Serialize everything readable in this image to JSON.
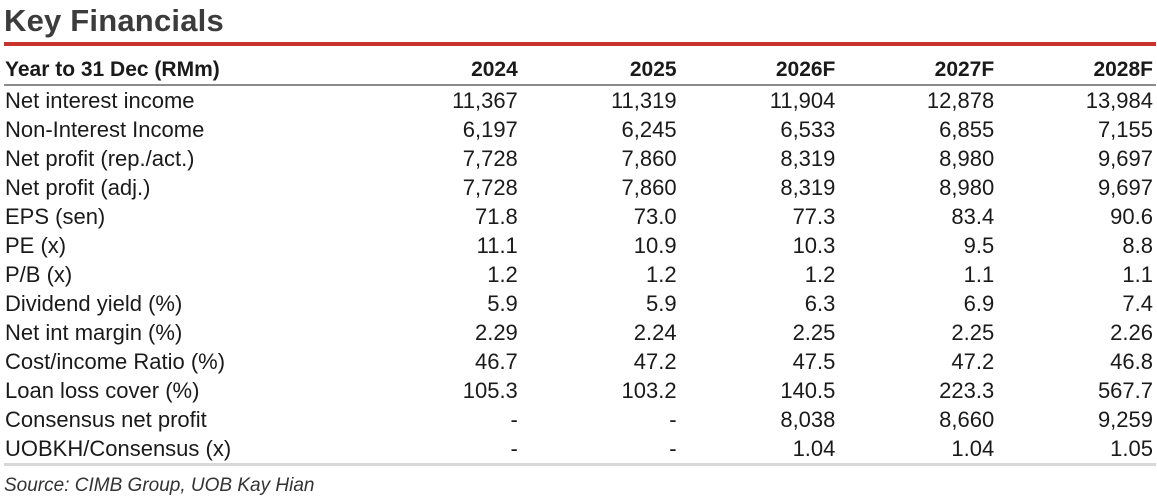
{
  "title": "Key Financials",
  "accent_color": "#c8342b",
  "table": {
    "header": [
      "Year to 31 Dec (RMm)",
      "2024",
      "2025",
      "2026F",
      "2027F",
      "2028F"
    ],
    "rows": [
      {
        "label": "Net interest income",
        "values": [
          "11,367",
          "11,319",
          "11,904",
          "12,878",
          "13,984"
        ]
      },
      {
        "label": "Non-Interest Income",
        "values": [
          "6,197",
          "6,245",
          "6,533",
          "6,855",
          "7,155"
        ]
      },
      {
        "label": "Net profit (rep./act.)",
        "values": [
          "7,728",
          "7,860",
          "8,319",
          "8,980",
          "9,697"
        ]
      },
      {
        "label": "Net profit (adj.)",
        "values": [
          "7,728",
          "7,860",
          "8,319",
          "8,980",
          "9,697"
        ]
      },
      {
        "label": "EPS (sen)",
        "values": [
          "71.8",
          "73.0",
          "77.3",
          "83.4",
          "90.6"
        ]
      },
      {
        "label": "PE (x)",
        "values": [
          "11.1",
          "10.9",
          "10.3",
          "9.5",
          "8.8"
        ]
      },
      {
        "label": "P/B (x)",
        "values": [
          "1.2",
          "1.2",
          "1.2",
          "1.1",
          "1.1"
        ]
      },
      {
        "label": "Dividend yield (%)",
        "values": [
          "5.9",
          "5.9",
          "6.3",
          "6.9",
          "7.4"
        ]
      },
      {
        "label": "Net int margin (%)",
        "values": [
          "2.29",
          "2.24",
          "2.25",
          "2.25",
          "2.26"
        ]
      },
      {
        "label": "Cost/income Ratio (%)",
        "values": [
          "46.7",
          "47.2",
          "47.5",
          "47.2",
          "46.8"
        ]
      },
      {
        "label": "Loan loss cover (%)",
        "values": [
          "105.3",
          "103.2",
          "140.5",
          "223.3",
          "567.7"
        ]
      },
      {
        "label": "Consensus net profit",
        "values": [
          "-",
          "-",
          "8,038",
          "8,660",
          "9,259"
        ]
      },
      {
        "label": "UOBKH/Consensus (x)",
        "values": [
          "-",
          "-",
          "1.04",
          "1.04",
          "1.05"
        ]
      }
    ]
  },
  "source": "Source: CIMB Group, UOB Kay Hian"
}
